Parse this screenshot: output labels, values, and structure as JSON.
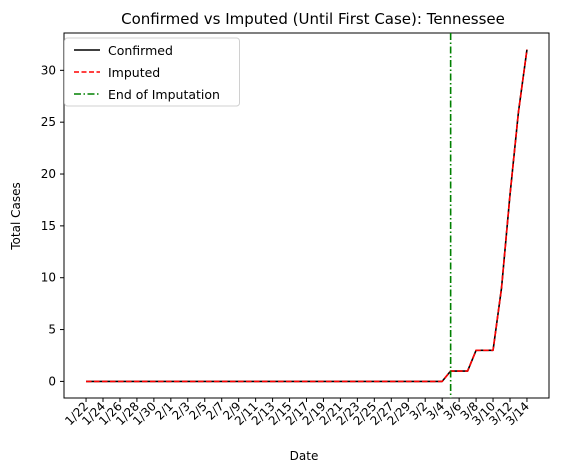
{
  "chart_data": {
    "type": "line",
    "title": "Confirmed vs Imputed (Until First Case): Tennessee",
    "xlabel": "Date",
    "ylabel": "Total Cases",
    "ylim": [
      -1.6,
      33.6
    ],
    "yticks": [
      0,
      5,
      10,
      15,
      20,
      25,
      30
    ],
    "x": [
      "1/22",
      "1/23",
      "1/24",
      "1/25",
      "1/26",
      "1/27",
      "1/28",
      "1/29",
      "1/30",
      "1/31",
      "2/1",
      "2/2",
      "2/3",
      "2/4",
      "2/5",
      "2/6",
      "2/7",
      "2/8",
      "2/9",
      "2/10",
      "2/11",
      "2/12",
      "2/13",
      "2/14",
      "2/15",
      "2/16",
      "2/17",
      "2/18",
      "2/19",
      "2/20",
      "2/21",
      "2/22",
      "2/23",
      "2/24",
      "2/25",
      "2/26",
      "2/27",
      "2/28",
      "2/29",
      "3/1",
      "3/2",
      "3/3",
      "3/4",
      "3/5",
      "3/6",
      "3/7",
      "3/8",
      "3/9",
      "3/10",
      "3/11",
      "3/12",
      "3/13",
      "3/14"
    ],
    "xtick_labels": [
      "1/22",
      "1/24",
      "1/26",
      "1/28",
      "1/30",
      "2/1",
      "2/3",
      "2/5",
      "2/7",
      "2/9",
      "2/11",
      "2/13",
      "2/15",
      "2/17",
      "2/19",
      "2/21",
      "2/23",
      "2/25",
      "2/27",
      "2/29",
      "3/2",
      "3/4",
      "3/6",
      "3/8",
      "3/10",
      "3/12",
      "3/14"
    ],
    "series": [
      {
        "name": "Confirmed",
        "color": "#000000",
        "style": "solid",
        "values": [
          0,
          0,
          0,
          0,
          0,
          0,
          0,
          0,
          0,
          0,
          0,
          0,
          0,
          0,
          0,
          0,
          0,
          0,
          0,
          0,
          0,
          0,
          0,
          0,
          0,
          0,
          0,
          0,
          0,
          0,
          0,
          0,
          0,
          0,
          0,
          0,
          0,
          0,
          0,
          0,
          0,
          0,
          0,
          1,
          1,
          1,
          3,
          3,
          3,
          9,
          18,
          26,
          32
        ]
      },
      {
        "name": "Imputed",
        "color": "#ff0000",
        "style": "dashed",
        "values": [
          0,
          0,
          0,
          0,
          0,
          0,
          0,
          0,
          0,
          0,
          0,
          0,
          0,
          0,
          0,
          0,
          0,
          0,
          0,
          0,
          0,
          0,
          0,
          0,
          0,
          0,
          0,
          0,
          0,
          0,
          0,
          0,
          0,
          0,
          0,
          0,
          0,
          0,
          0,
          0,
          0,
          0,
          0,
          1,
          1,
          1,
          3,
          3,
          3,
          9,
          18,
          26,
          32
        ]
      }
    ],
    "vline": {
      "name": "End of Imputation",
      "x": "3/5",
      "color": "#008000",
      "style": "dashdot"
    },
    "grid": false,
    "legend_position": "top-left"
  }
}
